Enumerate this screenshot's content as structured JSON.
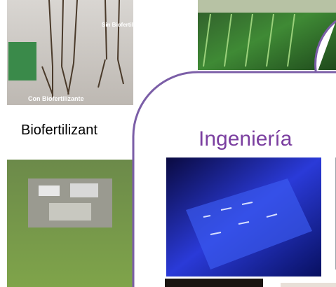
{
  "slide": {
    "left_caption": "Biofertilizant",
    "panel_title": "Ingeniería",
    "photo_labels": {
      "with": "Con Biofertilizante",
      "without": "Sin Biofertilizante"
    }
  }
}
